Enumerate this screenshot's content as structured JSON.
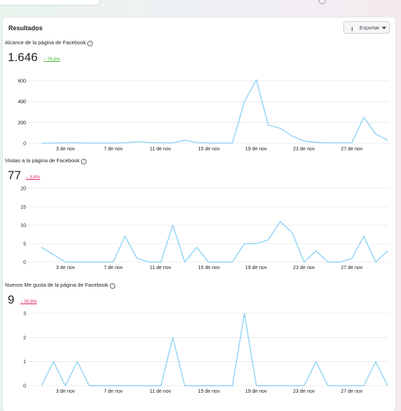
{
  "header": {
    "title": "Resultados",
    "export_label": "Exportar",
    "export_icon": "download-icon"
  },
  "colors": {
    "line": "#8fd3f4",
    "grid": "#e4e6eb",
    "up": "#42b72a",
    "down": "#e0245e"
  },
  "sections": [
    {
      "title": "Alcance de la página de Facebook",
      "total": "1.646",
      "change": "76,8%",
      "direction": "up",
      "arrow": "↑"
    },
    {
      "title": "Visitas a la página de Facebook",
      "total": "77",
      "change": "3,8%",
      "direction": "down",
      "arrow": "↓"
    },
    {
      "title": "Nuevos Me gusta de la página de Facebook",
      "total": "9",
      "change": "30,8%",
      "direction": "down",
      "arrow": "↓"
    }
  ],
  "chart_data": [
    {
      "type": "line",
      "x": [
        "1 nov",
        "2 nov",
        "3 nov",
        "4 nov",
        "5 nov",
        "6 nov",
        "7 nov",
        "8 nov",
        "9 nov",
        "10 nov",
        "11 nov",
        "12 nov",
        "13 nov",
        "14 nov",
        "15 nov",
        "16 nov",
        "17 nov",
        "18 nov",
        "19 nov",
        "20 nov",
        "21 nov",
        "22 nov",
        "23 nov",
        "24 nov",
        "25 nov",
        "26 nov",
        "27 nov",
        "28 nov",
        "29 nov",
        "30 nov"
      ],
      "xticks": [
        "3 de nov",
        "7 de nov",
        "11 de nov",
        "15 de nov",
        "19 de nov",
        "23 de nov",
        "27 de nov"
      ],
      "yticks": [
        "0",
        "200",
        "400",
        "600"
      ],
      "ylim": [
        0,
        600
      ],
      "values": [
        2,
        3,
        5,
        5,
        3,
        3,
        3,
        5,
        15,
        8,
        5,
        5,
        30,
        8,
        3,
        3,
        3,
        400,
        610,
        175,
        145,
        70,
        20,
        10,
        5,
        5,
        5,
        250,
        90,
        30
      ],
      "grid": true
    },
    {
      "type": "line",
      "x": [
        "1 nov",
        "2 nov",
        "3 nov",
        "4 nov",
        "5 nov",
        "6 nov",
        "7 nov",
        "8 nov",
        "9 nov",
        "10 nov",
        "11 nov",
        "12 nov",
        "13 nov",
        "14 nov",
        "15 nov",
        "16 nov",
        "17 nov",
        "18 nov",
        "19 nov",
        "20 nov",
        "21 nov",
        "22 nov",
        "23 nov",
        "24 nov",
        "25 nov",
        "26 nov",
        "27 nov",
        "28 nov",
        "29 nov",
        "30 nov"
      ],
      "xticks": [
        "3 de nov",
        "7 de nov",
        "11 de nov",
        "15 de nov",
        "19 de nov",
        "23 de nov",
        "27 de nov"
      ],
      "yticks": [
        "0",
        "5",
        "10",
        "15",
        "20"
      ],
      "ylim": [
        0,
        20
      ],
      "values": [
        4,
        2,
        0,
        0,
        0,
        0,
        0,
        7,
        1,
        0,
        0,
        10,
        0,
        4,
        0,
        0,
        0,
        5,
        5,
        6,
        11,
        8,
        0,
        3,
        0,
        0,
        1,
        7,
        0,
        3
      ],
      "grid": true
    },
    {
      "type": "line",
      "x": [
        "1 nov",
        "2 nov",
        "3 nov",
        "4 nov",
        "5 nov",
        "6 nov",
        "7 nov",
        "8 nov",
        "9 nov",
        "10 nov",
        "11 nov",
        "12 nov",
        "13 nov",
        "14 nov",
        "15 nov",
        "16 nov",
        "17 nov",
        "18 nov",
        "19 nov",
        "20 nov",
        "21 nov",
        "22 nov",
        "23 nov",
        "24 nov",
        "25 nov",
        "26 nov",
        "27 nov",
        "28 nov",
        "29 nov",
        "30 nov"
      ],
      "xticks": [
        "3 de nov",
        "7 de nov",
        "11 de nov",
        "15 de nov",
        "19 de nov",
        "23 de nov",
        "27 de nov"
      ],
      "yticks": [
        "0",
        "1",
        "2",
        "3"
      ],
      "ylim": [
        0,
        3
      ],
      "values": [
        0,
        1,
        0,
        1,
        0,
        0,
        0,
        0,
        0,
        0,
        0,
        2,
        0,
        0,
        0,
        0,
        0,
        3,
        0,
        0,
        0,
        0,
        0,
        1,
        0,
        0,
        0,
        0,
        1,
        0
      ],
      "grid": true
    }
  ]
}
